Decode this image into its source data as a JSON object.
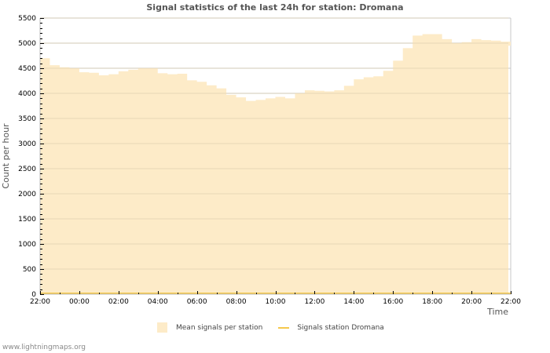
{
  "title": "Signal statistics of the last 24h for station: Dromana",
  "footer": "www.lightningmaps.org",
  "legend": {
    "area_label": "Mean signals per station",
    "line_label": "Signals station Dromana"
  },
  "colors": {
    "area_fill": "#fdebc8",
    "line": "#f5c84c",
    "grid": "#c8c8c8",
    "grid_inner": "#d8c8a8"
  },
  "chart_data": {
    "type": "area",
    "title": "Signal statistics of the last 24h for station: Dromana",
    "xlabel": "Time",
    "ylabel": "Count per hour",
    "ylim": [
      0,
      5500
    ],
    "yticks": [
      0,
      500,
      1000,
      1500,
      2000,
      2500,
      3000,
      3500,
      4000,
      4500,
      5000,
      5500
    ],
    "xticks": [
      "22:00",
      "00:00",
      "02:00",
      "04:00",
      "06:00",
      "08:00",
      "10:00",
      "12:00",
      "14:00",
      "16:00",
      "18:00",
      "20:00",
      "22:00"
    ],
    "grid": true,
    "legend_position": "bottom",
    "x": [
      "22:00",
      "22:30",
      "23:00",
      "23:30",
      "00:00",
      "00:30",
      "01:00",
      "01:30",
      "02:00",
      "02:30",
      "03:00",
      "03:30",
      "04:00",
      "04:30",
      "05:00",
      "05:30",
      "06:00",
      "06:30",
      "07:00",
      "07:30",
      "08:00",
      "08:30",
      "09:00",
      "09:30",
      "10:00",
      "10:30",
      "11:00",
      "11:30",
      "12:00",
      "12:30",
      "13:00",
      "13:30",
      "14:00",
      "14:30",
      "15:00",
      "15:30",
      "16:00",
      "16:30",
      "17:00",
      "17:30",
      "18:00",
      "18:30",
      "19:00",
      "19:30",
      "20:00",
      "20:30",
      "21:00",
      "21:30",
      "22:00"
    ],
    "series": [
      {
        "name": "Mean signals per station",
        "type": "area",
        "values": [
          4700,
          4560,
          4520,
          4500,
          4420,
          4410,
          4360,
          4380,
          4440,
          4470,
          4500,
          4500,
          4400,
          4380,
          4390,
          4260,
          4230,
          4160,
          4100,
          3970,
          3920,
          3850,
          3870,
          3900,
          3930,
          3900,
          4000,
          4060,
          4050,
          4040,
          4060,
          4150,
          4280,
          4320,
          4340,
          4450,
          4650,
          4900,
          5150,
          5180,
          5180,
          5080,
          5000,
          5020,
          5080,
          5060,
          5050,
          5030,
          4950
        ]
      },
      {
        "name": "Signals station Dromana",
        "type": "line",
        "values": [
          0,
          0,
          0,
          0,
          0,
          0,
          0,
          0,
          0,
          0,
          0,
          0,
          0,
          0,
          0,
          0,
          0,
          0,
          0,
          0,
          0,
          0,
          0,
          0,
          0,
          0,
          0,
          0,
          0,
          0,
          0,
          0,
          0,
          0,
          0,
          0,
          0,
          0,
          0,
          0,
          0,
          0,
          0,
          0,
          0,
          0,
          0,
          0,
          0
        ]
      }
    ]
  }
}
